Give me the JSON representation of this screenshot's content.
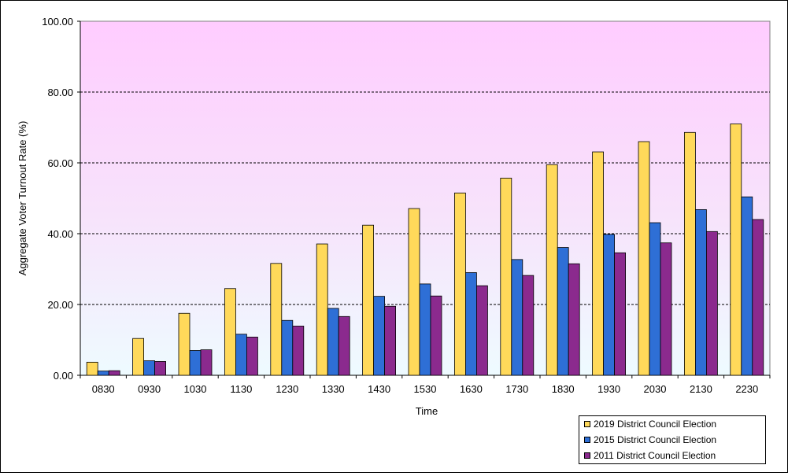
{
  "chart_data": {
    "type": "bar",
    "title": "",
    "xlabel": "Time",
    "ylabel": "Aggregate Voter Turnout Rate (%)",
    "ylim": [
      0,
      100
    ],
    "yticks": [
      "0.00",
      "20.00",
      "40.00",
      "60.00",
      "80.00",
      "100.00"
    ],
    "grid": true,
    "legend_position": "bottom-right",
    "categories": [
      "0830",
      "0930",
      "1030",
      "1130",
      "1230",
      "1330",
      "1430",
      "1530",
      "1630",
      "1730",
      "1830",
      "1930",
      "2030",
      "2130",
      "2230"
    ],
    "series": [
      {
        "name": "2019 District Council Election",
        "color": "#FFD95A",
        "values": [
          3.7,
          10.4,
          17.5,
          24.5,
          31.6,
          37.1,
          42.4,
          47.1,
          51.5,
          55.7,
          59.5,
          63.1,
          66.0,
          68.6,
          71.0
        ]
      },
      {
        "name": "2015 District Council Election",
        "color": "#2E6FD6",
        "values": [
          1.2,
          4.1,
          7.0,
          11.6,
          15.5,
          18.9,
          22.3,
          25.8,
          29.0,
          32.7,
          36.1,
          39.8,
          43.1,
          46.8,
          50.4
        ]
      },
      {
        "name": "2011 District Council Election",
        "color": "#8B2A8E",
        "values": [
          1.3,
          3.9,
          7.2,
          10.8,
          13.9,
          16.6,
          19.5,
          22.4,
          25.3,
          28.2,
          31.5,
          34.6,
          37.4,
          40.6,
          44.0
        ]
      }
    ]
  }
}
